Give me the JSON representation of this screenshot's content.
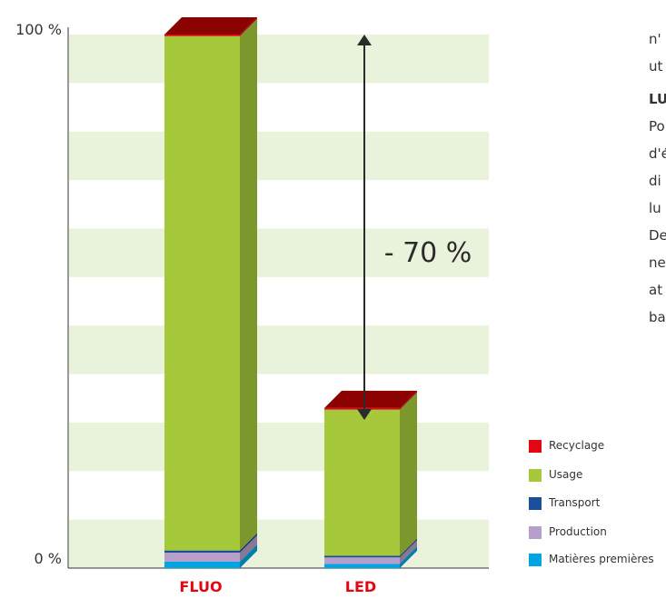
{
  "chart_data": {
    "type": "bar",
    "stacked": true,
    "style": "3d",
    "categories": [
      "FLUO",
      "LED"
    ],
    "ylim": [
      0,
      100
    ],
    "y_ticks": [
      "0 %",
      "100 %"
    ],
    "grid": "alternating horizontal bands",
    "legend_position": "bottom-right",
    "series": [
      {
        "name": "Matières premières",
        "color": "#00a6e4",
        "values": [
          1.2,
          0.8
        ]
      },
      {
        "name": "Production",
        "color": "#b79fcb",
        "values": [
          1.7,
          1.2
        ]
      },
      {
        "name": "Transport",
        "color": "#1a4f9c",
        "values": [
          0.4,
          0.3
        ]
      },
      {
        "name": "Usage",
        "color": "#a5c93a",
        "values": [
          96.4,
          27.4
        ]
      },
      {
        "name": "Recyclage",
        "color": "#e30613",
        "values": [
          0.3,
          0.3
        ]
      }
    ],
    "annotation": "- 70 %"
  },
  "colors": {
    "band": "#e9f2da",
    "top_face": "#8b0000",
    "axis": "#333333",
    "category_label": "#e30613"
  },
  "side_text": {
    "line1": "n'",
    "line2": "ut",
    "heading": "LU",
    "lines": [
      "Po",
      "d'é",
      "di",
      "lu",
      "De",
      "ne",
      "at",
      "ba"
    ]
  }
}
